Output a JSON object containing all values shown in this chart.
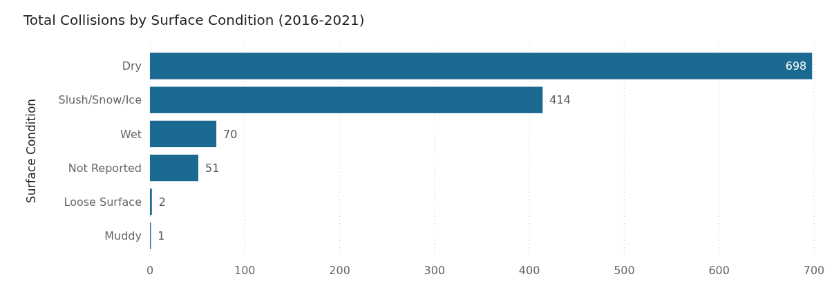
{
  "chart_data": {
    "type": "bar",
    "orientation": "horizontal",
    "title": "Total Collisions by Surface Condition (2016-2021)",
    "ylabel": "Surface Condition",
    "categories": [
      "Dry",
      "Slush/Snow/Ice",
      "Wet",
      "Not Reported",
      "Loose Surface",
      "Muddy"
    ],
    "values": [
      698,
      414,
      70,
      51,
      2,
      1
    ],
    "color": "#1b6a91",
    "xlim": [
      0,
      700
    ],
    "xticks": [
      0,
      100,
      200,
      300,
      400,
      500,
      600,
      700
    ],
    "grid": "x",
    "data_labels": true
  }
}
